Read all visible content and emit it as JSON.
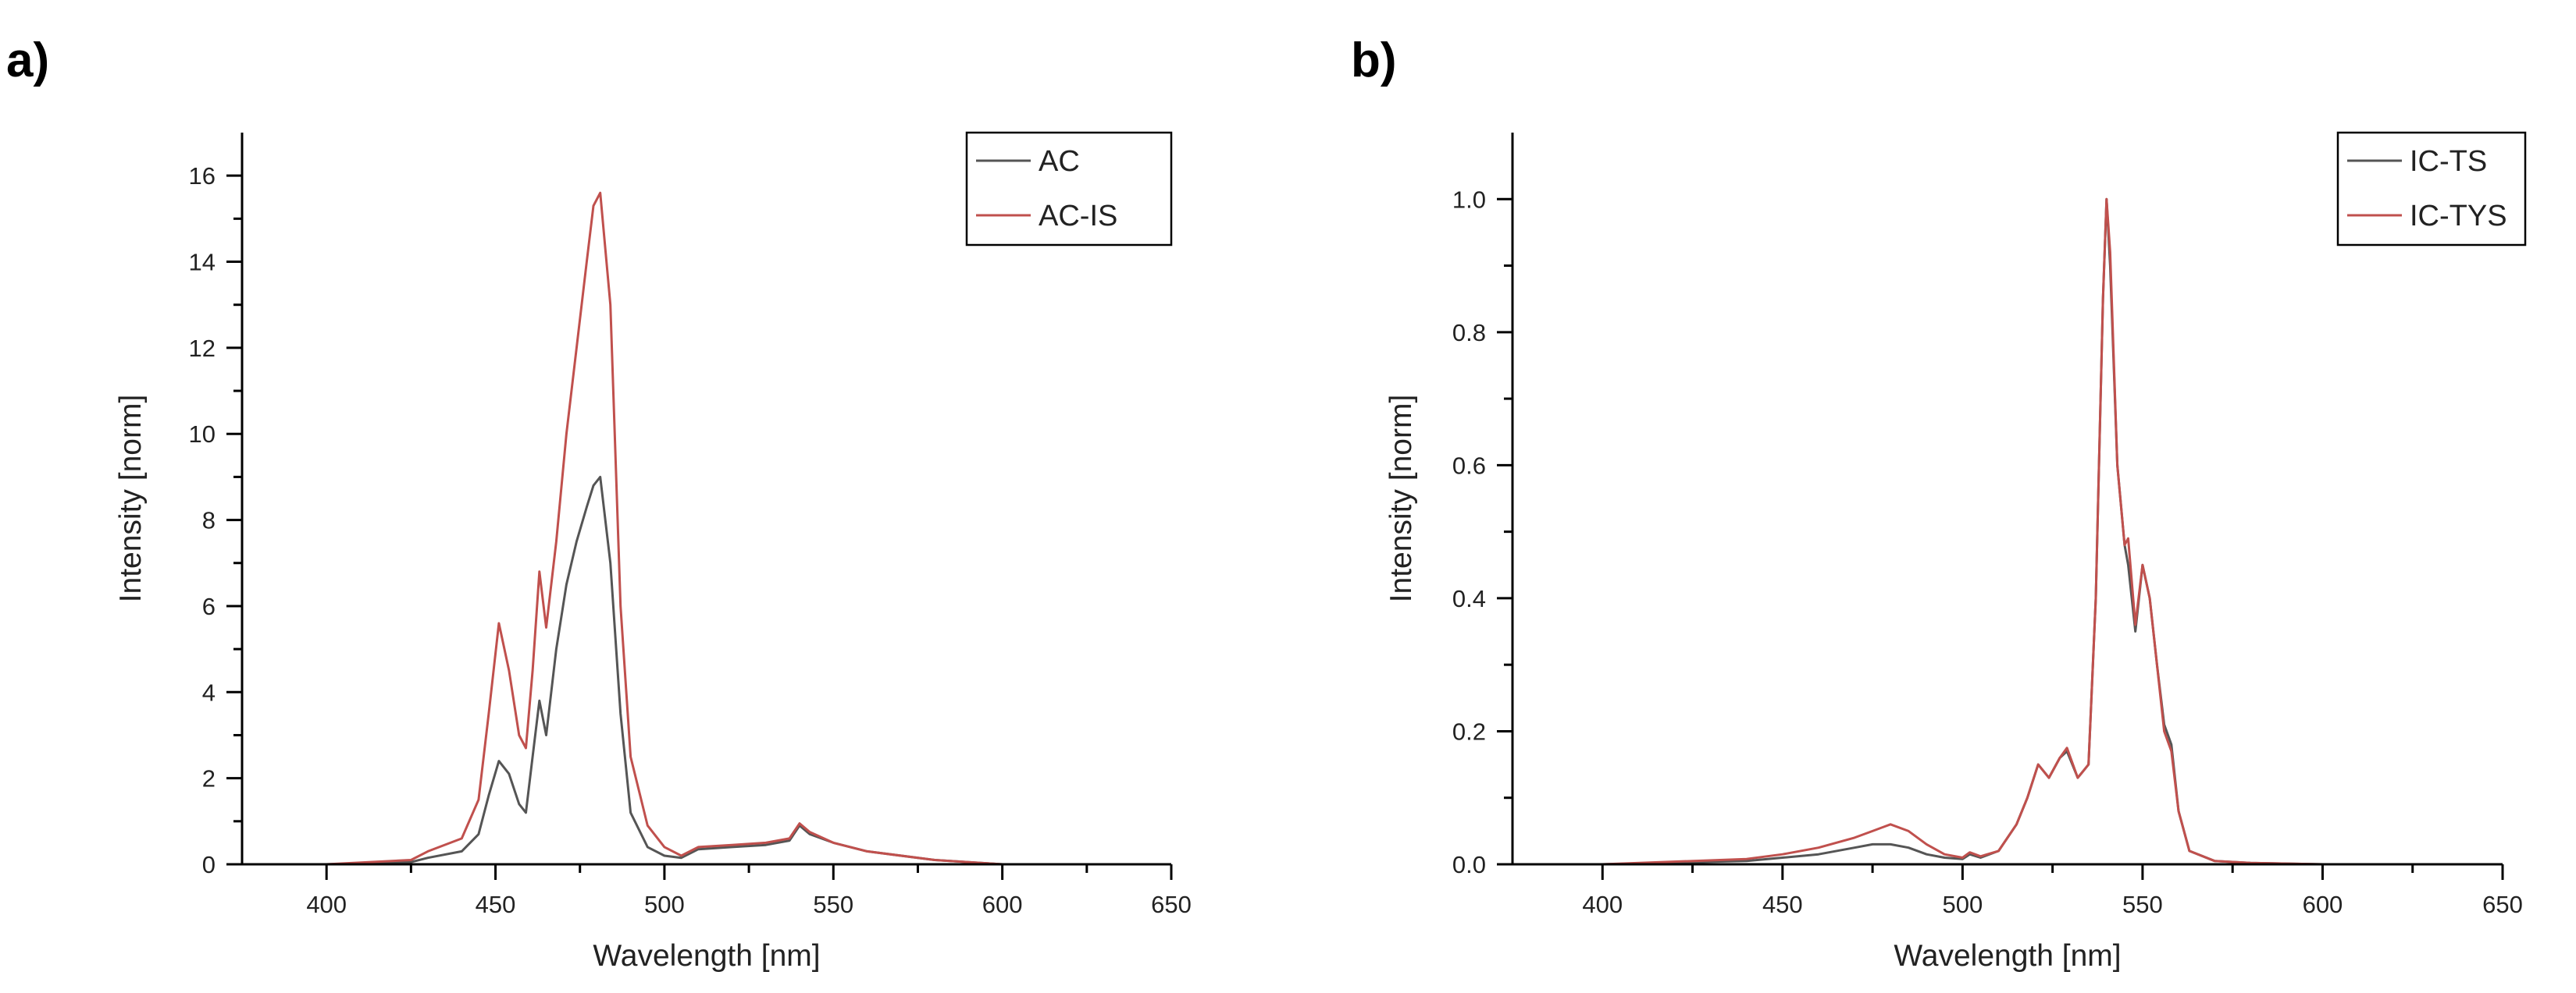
{
  "chart_data": [
    {
      "type": "line",
      "panel_label": "a)",
      "xlabel": "Wavelength [nm]",
      "ylabel": "Intensity [norm]",
      "xlim": [
        375,
        650
      ],
      "ylim": [
        0,
        17
      ],
      "xticks": [
        400,
        450,
        500,
        550,
        600,
        650
      ],
      "yticks": [
        0,
        2,
        4,
        6,
        8,
        10,
        12,
        14,
        16
      ],
      "ytick_labels": [
        "0",
        "2",
        "4",
        "6",
        "8",
        "10",
        "12",
        "14",
        "16"
      ],
      "legend_position": "top-right",
      "series": [
        {
          "name": "AC",
          "color": "#555555",
          "x": [
            400,
            425,
            430,
            440,
            445,
            448,
            451,
            454,
            457,
            459,
            461,
            463,
            465,
            468,
            471,
            474,
            477,
            479,
            481,
            484,
            487,
            490,
            495,
            500,
            505,
            510,
            520,
            530,
            537,
            540,
            543,
            550,
            560,
            580,
            596,
            600
          ],
          "y": [
            0,
            0.05,
            0.15,
            0.3,
            0.7,
            1.6,
            2.4,
            2.1,
            1.4,
            1.2,
            2.5,
            3.8,
            3.0,
            5.0,
            6.5,
            7.5,
            8.3,
            8.8,
            9.0,
            7.0,
            3.5,
            1.2,
            0.4,
            0.2,
            0.15,
            0.35,
            0.4,
            0.45,
            0.55,
            0.9,
            0.7,
            0.5,
            0.3,
            0.1,
            0.02,
            0
          ]
        },
        {
          "name": "AC-IS",
          "color": "#c0504d",
          "x": [
            400,
            425,
            430,
            440,
            445,
            448,
            451,
            454,
            457,
            459,
            461,
            463,
            465,
            468,
            471,
            474,
            477,
            479,
            481,
            484,
            487,
            490,
            495,
            500,
            505,
            510,
            520,
            530,
            537,
            540,
            543,
            550,
            560,
            580,
            596,
            600
          ],
          "y": [
            0,
            0.1,
            0.3,
            0.6,
            1.5,
            3.5,
            5.6,
            4.5,
            3.0,
            2.7,
            4.5,
            6.8,
            5.5,
            7.5,
            10.0,
            12.0,
            14.0,
            15.3,
            15.6,
            13.0,
            6.0,
            2.5,
            0.9,
            0.4,
            0.2,
            0.4,
            0.45,
            0.5,
            0.6,
            0.95,
            0.75,
            0.5,
            0.3,
            0.1,
            0.02,
            0
          ]
        }
      ]
    },
    {
      "type": "line",
      "panel_label": "b)",
      "xlabel": "Wavelength [nm]",
      "ylabel": "Intensity [norm]",
      "xlim": [
        375,
        650
      ],
      "ylim": [
        0,
        1.1
      ],
      "xticks": [
        400,
        450,
        500,
        550,
        600,
        650
      ],
      "yticks": [
        0,
        0.2,
        0.4,
        0.6,
        0.8,
        1.0
      ],
      "ytick_labels": [
        "0.0",
        "0.2",
        "0.4",
        "0.6",
        "0.8",
        "1.0"
      ],
      "legend_position": "top-right",
      "series": [
        {
          "name": "IC-TS",
          "color": "#555555",
          "x": [
            400,
            440,
            450,
            460,
            470,
            475,
            480,
            485,
            490,
            495,
            500,
            502,
            505,
            510,
            515,
            518,
            521,
            524,
            527,
            529,
            532,
            535,
            537,
            539,
            540,
            541,
            543,
            545,
            546,
            548,
            550,
            552,
            554,
            556,
            558,
            560,
            563,
            570,
            580,
            600,
            620
          ],
          "y": [
            0,
            0.005,
            0.01,
            0.015,
            0.025,
            0.03,
            0.03,
            0.025,
            0.015,
            0.01,
            0.008,
            0.015,
            0.01,
            0.02,
            0.06,
            0.1,
            0.15,
            0.13,
            0.16,
            0.17,
            0.13,
            0.15,
            0.4,
            0.85,
            1.0,
            0.9,
            0.6,
            0.48,
            0.45,
            0.35,
            0.45,
            0.4,
            0.3,
            0.21,
            0.18,
            0.08,
            0.02,
            0.005,
            0.002,
            0,
            0
          ]
        },
        {
          "name": "IC-TYS",
          "color": "#c0504d",
          "x": [
            400,
            440,
            450,
            460,
            470,
            475,
            480,
            485,
            490,
            495,
            500,
            502,
            505,
            510,
            515,
            518,
            521,
            524,
            527,
            529,
            532,
            535,
            537,
            539,
            540,
            541,
            543,
            545,
            546,
            548,
            550,
            552,
            554,
            556,
            558,
            560,
            563,
            570,
            580,
            600,
            620
          ],
          "y": [
            0,
            0.008,
            0.015,
            0.025,
            0.04,
            0.05,
            0.06,
            0.05,
            0.03,
            0.015,
            0.01,
            0.018,
            0.012,
            0.02,
            0.06,
            0.1,
            0.15,
            0.13,
            0.16,
            0.175,
            0.13,
            0.15,
            0.4,
            0.85,
            1.0,
            0.92,
            0.6,
            0.48,
            0.49,
            0.36,
            0.45,
            0.4,
            0.3,
            0.2,
            0.17,
            0.08,
            0.02,
            0.005,
            0.002,
            0,
            0
          ]
        }
      ]
    }
  ]
}
